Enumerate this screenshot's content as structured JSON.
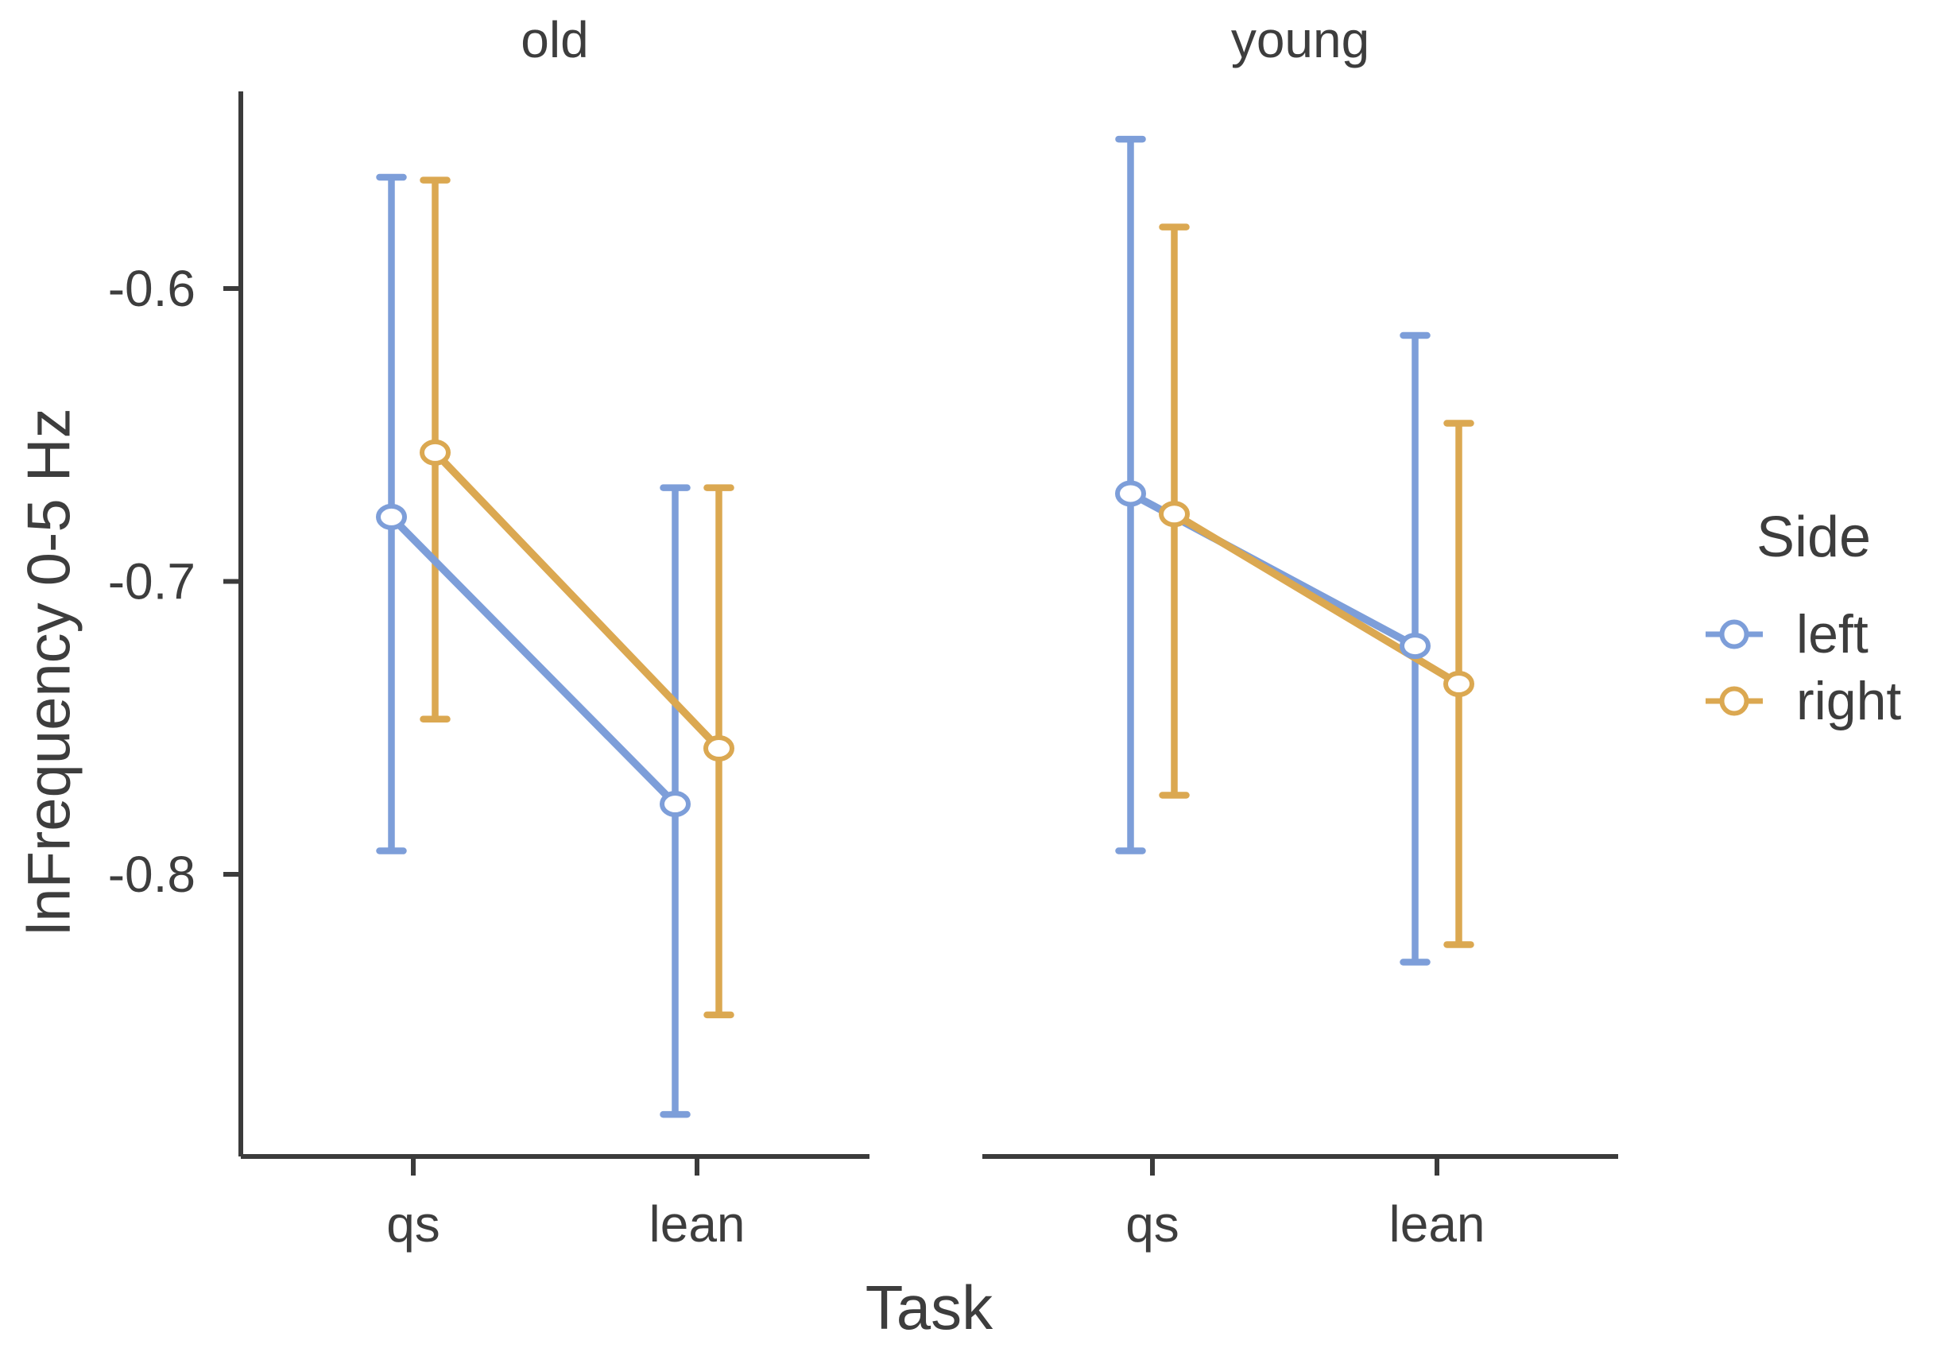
{
  "chart_data": {
    "type": "pointrange",
    "title": "",
    "xlabel": "Task",
    "ylabel": "lnFrequency 0-5 Hz",
    "x_categories": [
      "qs",
      "lean"
    ],
    "yticks": [
      {
        "value": -0.6,
        "label": "-0.6"
      },
      {
        "value": -0.7,
        "label": "-0.7"
      },
      {
        "value": -0.8,
        "label": "-0.8"
      }
    ],
    "ylim": [
      -0.9,
      -0.53
    ],
    "grid": "off",
    "legend_position": "right",
    "facets": [
      {
        "label": "old",
        "series": [
          {
            "name": "left",
            "color": "#7D9ED9",
            "points": [
              {
                "task": "qs",
                "mean": -0.678,
                "lo": -0.792,
                "hi": -0.562
              },
              {
                "task": "lean",
                "mean": -0.776,
                "lo": -0.882,
                "hi": -0.668
              }
            ]
          },
          {
            "name": "right",
            "color": "#DBA851",
            "points": [
              {
                "task": "qs",
                "mean": -0.656,
                "lo": -0.747,
                "hi": -0.563
              },
              {
                "task": "lean",
                "mean": -0.757,
                "lo": -0.848,
                "hi": -0.668
              }
            ]
          }
        ]
      },
      {
        "label": "young",
        "series": [
          {
            "name": "left",
            "color": "#7D9ED9",
            "points": [
              {
                "task": "qs",
                "mean": -0.67,
                "lo": -0.792,
                "hi": -0.549
              },
              {
                "task": "lean",
                "mean": -0.722,
                "lo": -0.83,
                "hi": -0.616
              }
            ]
          },
          {
            "name": "right",
            "color": "#DBA851",
            "points": [
              {
                "task": "qs",
                "mean": -0.677,
                "lo": -0.773,
                "hi": -0.579
              },
              {
                "task": "lean",
                "mean": -0.735,
                "lo": -0.824,
                "hi": -0.646
              }
            ]
          }
        ]
      }
    ],
    "legend": {
      "title": "Side",
      "entries": [
        {
          "label": "left",
          "color": "#7D9ED9"
        },
        {
          "label": "right",
          "color": "#DBA851"
        }
      ]
    },
    "colors": {
      "axis": "#3B3B3B",
      "text": "#3D3D3D",
      "marker_fill": "#FFFFFF"
    }
  }
}
